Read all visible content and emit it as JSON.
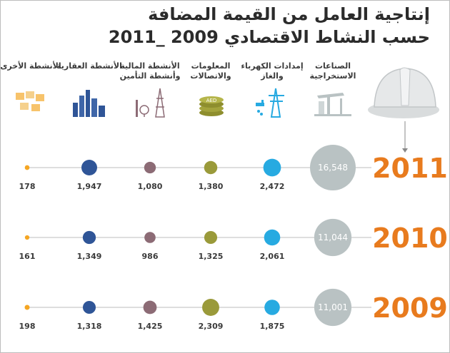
{
  "title_line1": "إنتاجية العامل من القيمة المضافة",
  "title_line2": "حسب النشاط الاقتصادي 2009 _2011",
  "categories": [
    "الصناعات الاستخراجية",
    "إمدادات الكهرباء والغاز",
    "المعلومات والاتصالات",
    "الأنشطة المالية وأنشطة التأمين",
    "الأنشطة العقارية",
    "الأنشطة الأخرى"
  ],
  "icon_names": [
    "oil-pump-icon",
    "power-tower-icon",
    "coins-icon",
    "antenna-tower-icon",
    "city-buildings-icon",
    "boxes-icon"
  ],
  "coin_label": "AED",
  "colors": {
    "series": [
      "#b9c2c3",
      "#27aae1",
      "#9a9a3a",
      "#8c6b75",
      "#2f5597",
      "#f5a623"
    ],
    "year": "#e87b1e",
    "line": "#bcbcbc"
  },
  "chart_data": {
    "type": "bubble",
    "title": "",
    "categories": [
      "الصناعات الاستخراجية",
      "إمدادات الكهرباء والغاز",
      "المعلومات والاتصالات",
      "الأنشطة المالية وأنشطة التأمين",
      "الأنشطة العقارية",
      "الأنشطة الأخرى"
    ],
    "series": [
      {
        "name": "2011",
        "values": [
          16548,
          2472,
          1380,
          1080,
          1947,
          178
        ],
        "labels": [
          "16,548",
          "2,472",
          "1,380",
          "1,080",
          "1,947",
          "178"
        ]
      },
      {
        "name": "2010",
        "values": [
          11044,
          2061,
          1325,
          986,
          1349,
          161
        ],
        "labels": [
          "11,044",
          "2,061",
          "1,325",
          "986",
          "1,349",
          "161"
        ]
      },
      {
        "name": "2009",
        "values": [
          11001,
          1875,
          2309,
          1425,
          1318,
          198
        ],
        "labels": [
          "11,001",
          "1,875",
          "2,309",
          "1,425",
          "1,318",
          "198"
        ]
      }
    ]
  }
}
